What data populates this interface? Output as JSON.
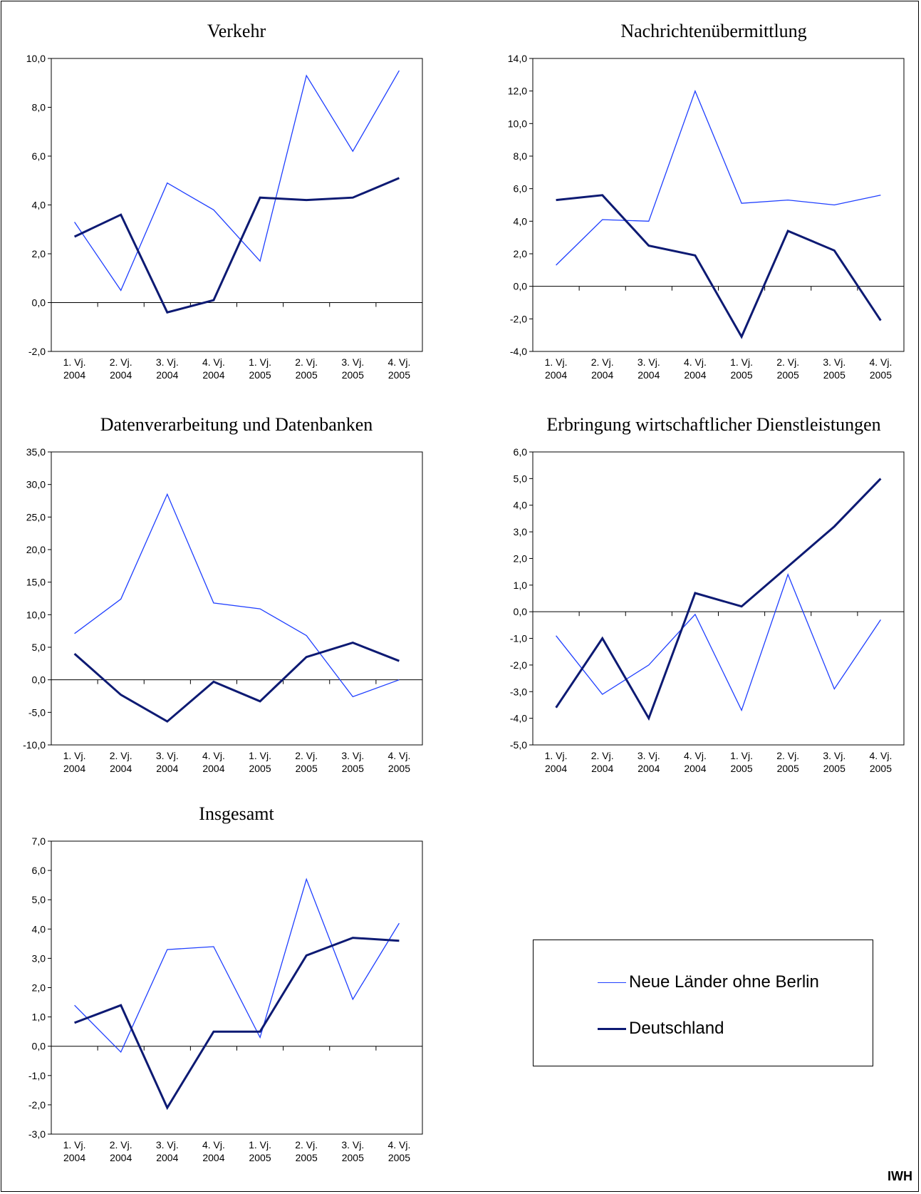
{
  "colors": {
    "neue_laender": "#1f3fff",
    "deutschland": "#0d1a73"
  },
  "legend": {
    "items": [
      {
        "label": "Neue Länder ohne Berlin",
        "series": "neue_laender"
      },
      {
        "label": "Deutschland",
        "series": "deutschland"
      }
    ]
  },
  "source": "IWH",
  "chart_data": [
    {
      "type": "line",
      "title": "Verkehr",
      "categories": [
        "1. Vj. 2004",
        "2. Vj. 2004",
        "3. Vj. 2004",
        "4. Vj. 2004",
        "1. Vj. 2005",
        "2. Vj. 2005",
        "3. Vj. 2005",
        "4. Vj. 2005"
      ],
      "ylim": [
        -2,
        10
      ],
      "ystep": 2,
      "series": [
        {
          "name": "Neue Länder ohne Berlin",
          "key": "neue_laender",
          "values": [
            3.3,
            0.5,
            4.9,
            3.8,
            1.7,
            9.3,
            6.2,
            9.5
          ]
        },
        {
          "name": "Deutschland",
          "key": "deutschland",
          "values": [
            2.7,
            3.6,
            -0.4,
            0.1,
            4.3,
            4.2,
            4.3,
            5.1
          ]
        }
      ]
    },
    {
      "type": "line",
      "title": "Nachrichtenübermittlung",
      "categories": [
        "1. Vj. 2004",
        "2. Vj. 2004",
        "3. Vj. 2004",
        "4. Vj. 2004",
        "1. Vj. 2005",
        "2. Vj. 2005",
        "3. Vj. 2005",
        "4. Vj. 2005"
      ],
      "ylim": [
        -4,
        14
      ],
      "ystep": 2,
      "series": [
        {
          "name": "Neue Länder ohne Berlin",
          "key": "neue_laender",
          "values": [
            1.3,
            4.1,
            4.0,
            12.0,
            5.1,
            5.3,
            5.0,
            5.6
          ]
        },
        {
          "name": "Deutschland",
          "key": "deutschland",
          "values": [
            5.3,
            5.6,
            2.5,
            1.9,
            -3.1,
            3.4,
            2.2,
            -2.1
          ]
        }
      ]
    },
    {
      "type": "line",
      "title": "Datenverarbeitung und Datenbanken",
      "categories": [
        "1. Vj. 2004",
        "2. Vj. 2004",
        "3. Vj. 2004",
        "4. Vj. 2004",
        "1. Vj. 2005",
        "2. Vj. 2005",
        "3. Vj. 2005",
        "4. Vj. 2005"
      ],
      "ylim": [
        -10,
        35
      ],
      "ystep": 5,
      "series": [
        {
          "name": "Neue Länder ohne Berlin",
          "key": "neue_laender",
          "values": [
            7.1,
            12.4,
            28.5,
            11.8,
            10.9,
            6.8,
            -2.6,
            0.0
          ]
        },
        {
          "name": "Deutschland",
          "key": "deutschland",
          "values": [
            4.0,
            -2.3,
            -6.4,
            -0.3,
            -3.3,
            3.5,
            5.7,
            2.9
          ]
        }
      ]
    },
    {
      "type": "line",
      "title": "Erbringung wirtschaftlicher Dienstleistungen",
      "categories": [
        "1. Vj. 2004",
        "2. Vj. 2004",
        "3. Vj. 2004",
        "4. Vj. 2004",
        "1. Vj. 2005",
        "2. Vj. 2005",
        "3. Vj. 2005",
        "4. Vj. 2005"
      ],
      "ylim": [
        -5,
        6
      ],
      "ystep": 1,
      "series": [
        {
          "name": "Neue Länder ohne Berlin",
          "key": "neue_laender",
          "values": [
            -0.9,
            -3.1,
            -2.0,
            -0.1,
            -3.7,
            1.4,
            -2.9,
            -0.3
          ]
        },
        {
          "name": "Deutschland",
          "key": "deutschland",
          "values": [
            -3.6,
            -1.0,
            -4.0,
            0.7,
            0.2,
            1.7,
            3.2,
            5.0
          ]
        }
      ]
    },
    {
      "type": "line",
      "title": "Insgesamt",
      "categories": [
        "1. Vj. 2004",
        "2. Vj. 2004",
        "3. Vj. 2004",
        "4. Vj. 2004",
        "1. Vj. 2005",
        "2. Vj. 2005",
        "3. Vj. 2005",
        "4. Vj. 2005"
      ],
      "ylim": [
        -3,
        7
      ],
      "ystep": 1,
      "series": [
        {
          "name": "Neue Länder ohne Berlin",
          "key": "neue_laender",
          "values": [
            1.4,
            -0.2,
            3.3,
            3.4,
            0.3,
            5.7,
            1.6,
            4.2
          ]
        },
        {
          "name": "Deutschland",
          "key": "deutschland",
          "values": [
            0.8,
            1.4,
            -2.1,
            0.5,
            0.5,
            3.1,
            3.7,
            3.6
          ]
        }
      ]
    }
  ]
}
